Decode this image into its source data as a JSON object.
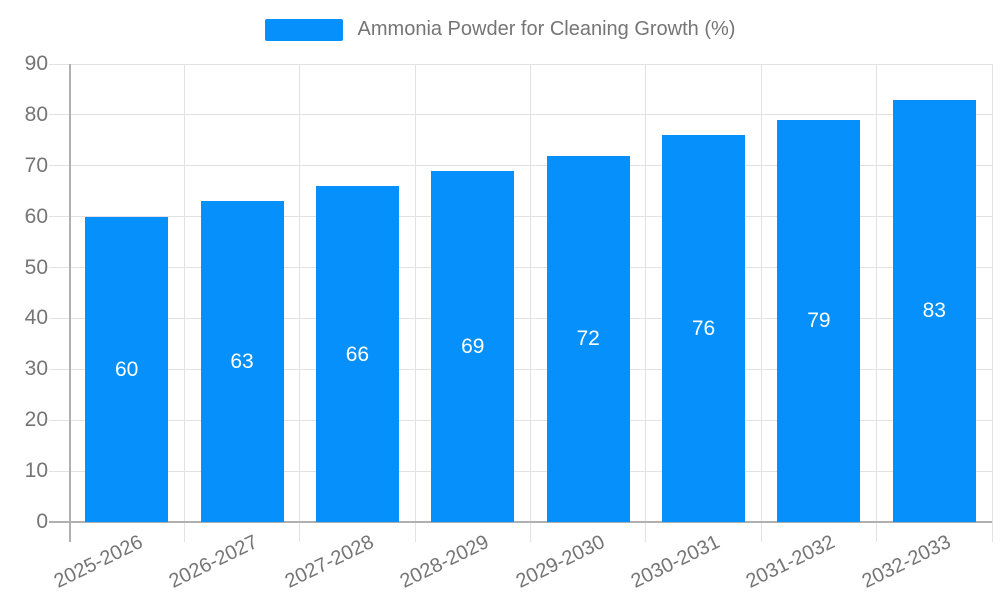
{
  "legend": {
    "label": "Ammonia Powder for Cleaning Growth (%)",
    "swatch_color": "#0590fb"
  },
  "chart_data": {
    "type": "bar",
    "title": "Ammonia Powder for Cleaning Growth (%)",
    "categories": [
      "2025-2026",
      "2026-2027",
      "2027-2028",
      "2028-2029",
      "2029-2030",
      "2030-2031",
      "2031-2032",
      "2032-2033"
    ],
    "values": [
      60,
      63,
      66,
      69,
      72,
      76,
      79,
      83
    ],
    "series_name": "Ammonia Powder for Cleaning Growth (%)",
    "xlabel": "",
    "ylabel": "",
    "ylim": [
      0,
      90
    ],
    "ytick_step": 10,
    "ytick_labels": [
      "0",
      "10",
      "20",
      "30",
      "40",
      "50",
      "60",
      "70",
      "80",
      "90"
    ],
    "grid": true,
    "legend_position": "top",
    "x_label_rotation_deg": -26,
    "value_labels": "centered-white-inside-bars",
    "colors": {
      "bar": "#0590fb",
      "value_label": "#ffffff",
      "axis_text": "#757575",
      "grid_line": "#e2e2e2",
      "axis_line": "#b0b0b0",
      "background": "#ffffff"
    }
  }
}
